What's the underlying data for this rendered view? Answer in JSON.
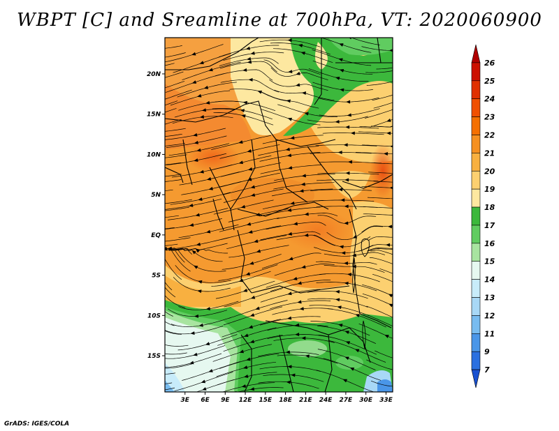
{
  "title": "WBPT [C] and Sreamline at 700hPa, VT: 2020060900",
  "footer": "GrADS: IGES/COLA",
  "map": {
    "lat_labels": [
      "20N",
      "15N",
      "10N",
      "5N",
      "EQ",
      "5S",
      "10S",
      "15S"
    ],
    "lat_values": [
      20,
      15,
      10,
      5,
      0,
      -5,
      -10,
      -15
    ],
    "lon_labels": [
      "3E",
      "6E",
      "9E",
      "12E",
      "15E",
      "18E",
      "21E",
      "24E",
      "27E",
      "30E",
      "33E"
    ],
    "lon_values": [
      3,
      6,
      9,
      12,
      15,
      18,
      21,
      24,
      27,
      30,
      33
    ],
    "lon_range": [
      0,
      34
    ],
    "lat_range": [
      -19.5,
      24.5
    ]
  },
  "colorbar": {
    "labels": [
      "26",
      "25",
      "24",
      "23",
      "22",
      "21",
      "20",
      "19",
      "18",
      "17",
      "16",
      "15",
      "14",
      "13",
      "12",
      "11",
      "9",
      "7"
    ],
    "colors": [
      "#b00000",
      "#cc1000",
      "#e03000",
      "#f05000",
      "#f47000",
      "#f59020",
      "#f8b040",
      "#fcd070",
      "#fde8a0",
      "#3cb83c",
      "#60cc60",
      "#a8e4a0",
      "#e6f8f0",
      "#c8ecfa",
      "#a8d8f6",
      "#78bcf0",
      "#4a96e8",
      "#2a70e0",
      "#1850d0"
    ]
  }
}
